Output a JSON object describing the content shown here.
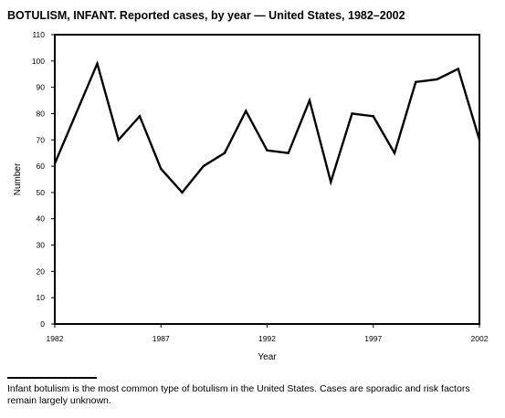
{
  "header": {
    "title": "BOTULISM, INFANT. Reported cases, by year — United States, 1982–2002"
  },
  "footnote": {
    "text": "Infant botulism is the most common type of botulism in the United States. Cases are sporadic and risk factors remain largely unknown."
  },
  "chart_data": {
    "type": "line",
    "title": "BOTULISM, INFANT. Reported cases, by year — United States, 1982–2002",
    "xlabel": "Year",
    "ylabel": "Number",
    "xlim": [
      1982,
      2002
    ],
    "ylim": [
      0,
      110
    ],
    "x_ticks": [
      1982,
      1987,
      1992,
      1997,
      2002
    ],
    "y_ticks": [
      0,
      10,
      20,
      30,
      40,
      50,
      60,
      70,
      80,
      90,
      100,
      110
    ],
    "grid": false,
    "legend": "none",
    "line_color": "#000000",
    "series": [
      {
        "x": [
          1982,
          1983,
          1984,
          1985,
          1986,
          1987,
          1988,
          1989,
          1990,
          1991,
          1992,
          1993,
          1994,
          1995,
          1996,
          1997,
          1998,
          1999,
          2000,
          2001,
          2002
        ],
        "values": [
          61,
          80,
          99,
          70,
          79,
          59,
          50,
          60,
          65,
          81,
          66,
          65,
          85,
          54,
          80,
          79,
          65,
          92,
          93,
          97,
          70
        ]
      }
    ]
  }
}
